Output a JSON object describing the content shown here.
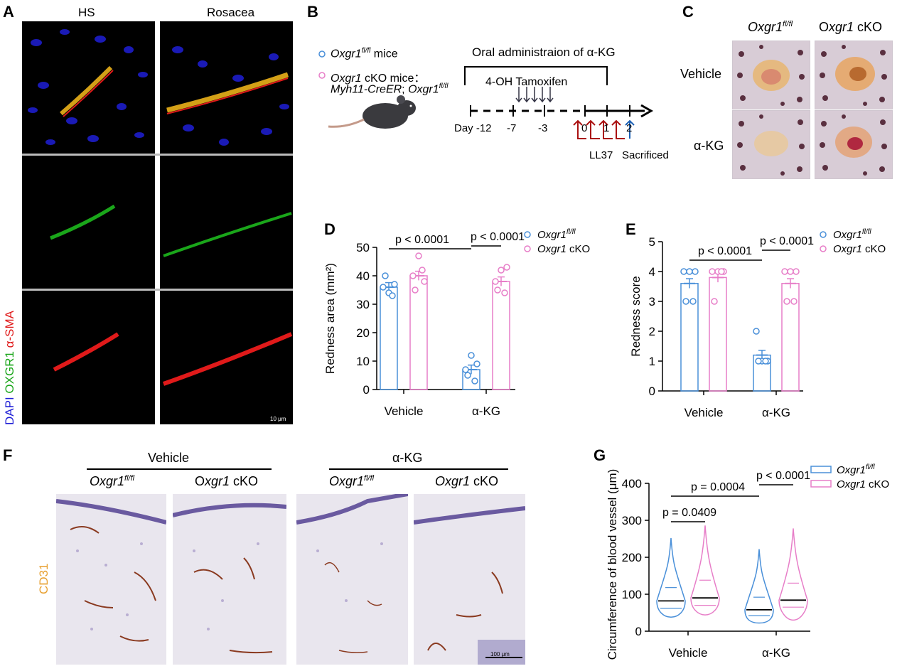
{
  "panel_letters": {
    "A": "A",
    "B": "B",
    "C": "C",
    "D": "D",
    "E": "E",
    "F": "F",
    "G": "G"
  },
  "panelA": {
    "col_headers": [
      "HS",
      "Rosacea"
    ],
    "side_label": {
      "dapi": "DAPI",
      "oxgr1": "OXGR1",
      "asma": "α-SMA"
    },
    "scale_bar": "10 μm",
    "colors": {
      "dapi": "#1f1fd6",
      "oxgr1": "#1aa61a",
      "asma": "#e01a1a"
    }
  },
  "panelB": {
    "legend": [
      {
        "marker_color": "#4a90d9",
        "text_it": "Oxgr1",
        "text_sup": "fl/fl",
        "text_rest": " mice"
      },
      {
        "marker_color": "#e77ec8",
        "text_it": "Oxgr1",
        "text_rest": " cKO mice：",
        "line2_it": "Myh11-CreER",
        "line2_rest": "; ",
        "line2_it2": "Oxgr1",
        "line2_sup": "fl/fl"
      }
    ],
    "oral_label": "Oral administraion of α-KG",
    "tamoxifen_label": "4-OH Tamoxifen",
    "days": [
      "Day -12",
      "-7",
      "-3",
      "0",
      "1",
      "2"
    ],
    "ll37_label": "LL37",
    "sacrificed_label": "Sacrificed"
  },
  "panelC": {
    "col_headers": [
      {
        "it": "Oxgr1",
        "sup": "fl/fl",
        "rest": ""
      },
      {
        "it": "",
        "sup": "",
        "rest": "Oxgr1 cKO",
        "pre": "O",
        "mid_it": "xgr1"
      }
    ],
    "row_headers": [
      "Vehicle",
      "α-KG"
    ]
  },
  "panelD": {
    "chart_data": {
      "type": "bar",
      "categories": [
        "Vehicle",
        "α-KG"
      ],
      "ylabel": "Redness area (mm²)",
      "ylim": [
        0,
        50
      ],
      "yticks": [
        0,
        10,
        20,
        30,
        40,
        50
      ],
      "series": [
        {
          "name": "Oxgr1 fl/fl",
          "color": "#4a90d9",
          "values": [
            36,
            7
          ],
          "points": [
            [
              36,
              34,
              37,
              40,
              33
            ],
            [
              7,
              12,
              9,
              5,
              3
            ]
          ]
        },
        {
          "name": "Oxgr1 cKO",
          "color": "#e77ec8",
          "values": [
            40,
            38
          ],
          "points": [
            [
              40,
              47,
              38,
              35,
              42
            ],
            [
              38,
              42,
              43,
              35,
              34
            ]
          ]
        }
      ],
      "comparisons": [
        {
          "label": "p < 0.0001",
          "from": [
            0,
            0
          ],
          "to": [
            1,
            0
          ]
        },
        {
          "label": "p < 0.0001",
          "from": [
            1,
            0
          ],
          "to": [
            1,
            1
          ]
        }
      ]
    }
  },
  "panelE": {
    "chart_data": {
      "type": "bar",
      "categories": [
        "Vehicle",
        "α-KG"
      ],
      "ylabel": "Redness score",
      "ylim": [
        0,
        5
      ],
      "yticks": [
        0,
        1,
        2,
        3,
        4,
        5
      ],
      "series": [
        {
          "name": "Oxgr1 fl/fl",
          "color": "#4a90d9",
          "values": [
            3.6,
            1.2
          ],
          "points": [
            [
              4,
              4,
              4,
              3,
              3
            ],
            [
              2,
              1,
              1,
              1,
              1
            ]
          ]
        },
        {
          "name": "Oxgr1 cKO",
          "color": "#e77ec8",
          "values": [
            3.8,
            3.6
          ],
          "points": [
            [
              4,
              4,
              4,
              3,
              4
            ],
            [
              4,
              4,
              4,
              3,
              3
            ]
          ]
        }
      ],
      "comparisons": [
        {
          "label": "p < 0.0001",
          "from": [
            0,
            0
          ],
          "to": [
            1,
            0
          ]
        },
        {
          "label": "p < 0.0001",
          "from": [
            1,
            0
          ],
          "to": [
            1,
            1
          ]
        }
      ]
    }
  },
  "legend_names": {
    "it": "Oxgr1",
    "sup": "fl/fl",
    "cko": " cKO"
  },
  "panelF": {
    "group_headers": [
      "Vehicle",
      "α-KG"
    ],
    "sub_headers": [
      {
        "it": "Oxgr1",
        "sup": "fl/fl",
        "rest": ""
      },
      {
        "pre": "O",
        "it": "xgr1",
        "rest": " cKO"
      },
      {
        "it": "Oxgr1",
        "sup": "fl/fl",
        "rest": ""
      },
      {
        "pre": "",
        "it": "Oxgr1",
        "rest": " cKO"
      }
    ],
    "side_label": "CD31",
    "scale_bar": "100 μm"
  },
  "panelG": {
    "chart_data": {
      "type": "violin",
      "categories": [
        "Vehicle",
        "α-KG"
      ],
      "ylabel": "Circumference of blood vessel (μm)",
      "ylim": [
        0,
        400
      ],
      "yticks": [
        0,
        100,
        200,
        300,
        400
      ],
      "series": [
        {
          "name": "Oxgr1 fl/fl",
          "color": "#4a90d9",
          "max": [
            252,
            222
          ],
          "median": [
            82,
            58
          ],
          "q1": [
            62,
            42
          ],
          "q3": [
            118,
            92
          ],
          "min": [
            38,
            22
          ]
        },
        {
          "name": "Oxgr1 cKO",
          "color": "#e77ec8",
          "max": [
            286,
            278
          ],
          "median": [
            90,
            84
          ],
          "q1": [
            70,
            65
          ],
          "q3": [
            138,
            130
          ],
          "min": [
            44,
            30
          ]
        }
      ],
      "comparisons": [
        {
          "label": "p = 0.0409"
        },
        {
          "label": "p = 0.0004"
        },
        {
          "label": "p < 0.0001"
        }
      ]
    }
  }
}
